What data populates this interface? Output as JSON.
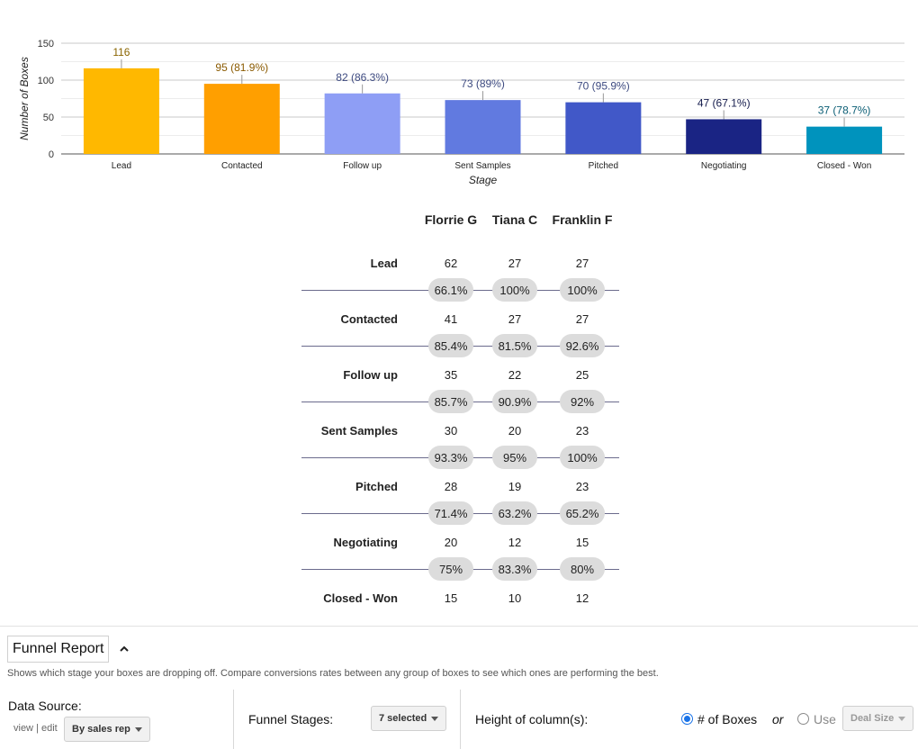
{
  "chart_data": {
    "type": "bar",
    "title": "",
    "xlabel": "Stage",
    "ylabel": "Number of Boxes",
    "ylim": [
      0,
      150
    ],
    "yticks": [
      "0",
      "50",
      "100",
      "150"
    ],
    "categories": [
      "Lead",
      "Contacted",
      "Follow up",
      "Sent Samples",
      "Pitched",
      "Negotiating",
      "Closed - Won"
    ],
    "values": [
      116,
      95,
      82,
      73,
      70,
      47,
      37
    ],
    "data_labels": [
      "116",
      "95 (81.9%)",
      "82 (86.3%)",
      "73 (89%)",
      "70 (95.9%)",
      "47 (67.1%)",
      "37 (78.7%)"
    ],
    "bar_colors": [
      "#ffb800",
      "#ff9f00",
      "#8e9ef5",
      "#617ae0",
      "#4158c8",
      "#1a2484",
      "#0093bd"
    ],
    "label_colors": [
      "#8a6500",
      "#8a5a00",
      "#3d4a80",
      "#3d4a80",
      "#3d4a80",
      "#151c4d",
      "#0b5e75"
    ],
    "legend": "none",
    "grid": true
  },
  "breakdown": {
    "reps": [
      "Florrie G",
      "Tiana C",
      "Franklin F"
    ],
    "rows": [
      {
        "stage": "Lead",
        "values": [
          "62",
          "27",
          "27"
        ],
        "conversions": [
          "66.1%",
          "100%",
          "100%"
        ]
      },
      {
        "stage": "Contacted",
        "values": [
          "41",
          "27",
          "27"
        ],
        "conversions": [
          "85.4%",
          "81.5%",
          "92.6%"
        ]
      },
      {
        "stage": "Follow up",
        "values": [
          "35",
          "22",
          "25"
        ],
        "conversions": [
          "85.7%",
          "90.9%",
          "92%"
        ]
      },
      {
        "stage": "Sent Samples",
        "values": [
          "30",
          "20",
          "23"
        ],
        "conversions": [
          "93.3%",
          "95%",
          "100%"
        ]
      },
      {
        "stage": "Pitched",
        "values": [
          "28",
          "19",
          "23"
        ],
        "conversions": [
          "71.4%",
          "63.2%",
          "65.2%"
        ]
      },
      {
        "stage": "Negotiating",
        "values": [
          "20",
          "12",
          "15"
        ],
        "conversions": [
          "75%",
          "83.3%",
          "80%"
        ]
      },
      {
        "stage": "Closed - Won",
        "values": [
          "15",
          "10",
          "12"
        ],
        "conversions": []
      }
    ]
  },
  "panel": {
    "report_title": "Funnel Report",
    "description": "Shows which stage your boxes are dropping off. Compare conversions rates between any group of boxes to see which ones are performing the best.",
    "data_source_label": "Data Source:",
    "view_link": "view",
    "separator": "|",
    "edit_link": "edit",
    "data_source_value": "By sales rep",
    "funnel_stages_label": "Funnel Stages:",
    "funnel_stages_value": "7 selected",
    "height_label": "Height of column(s):",
    "option_boxes": "# of Boxes",
    "or_text": "or",
    "option_use": "Use",
    "use_select_value": "Deal Size"
  },
  "colors": {
    "accent": "#1a73e8",
    "pill": "#dcdcdc",
    "line": "#6b6b8c"
  }
}
